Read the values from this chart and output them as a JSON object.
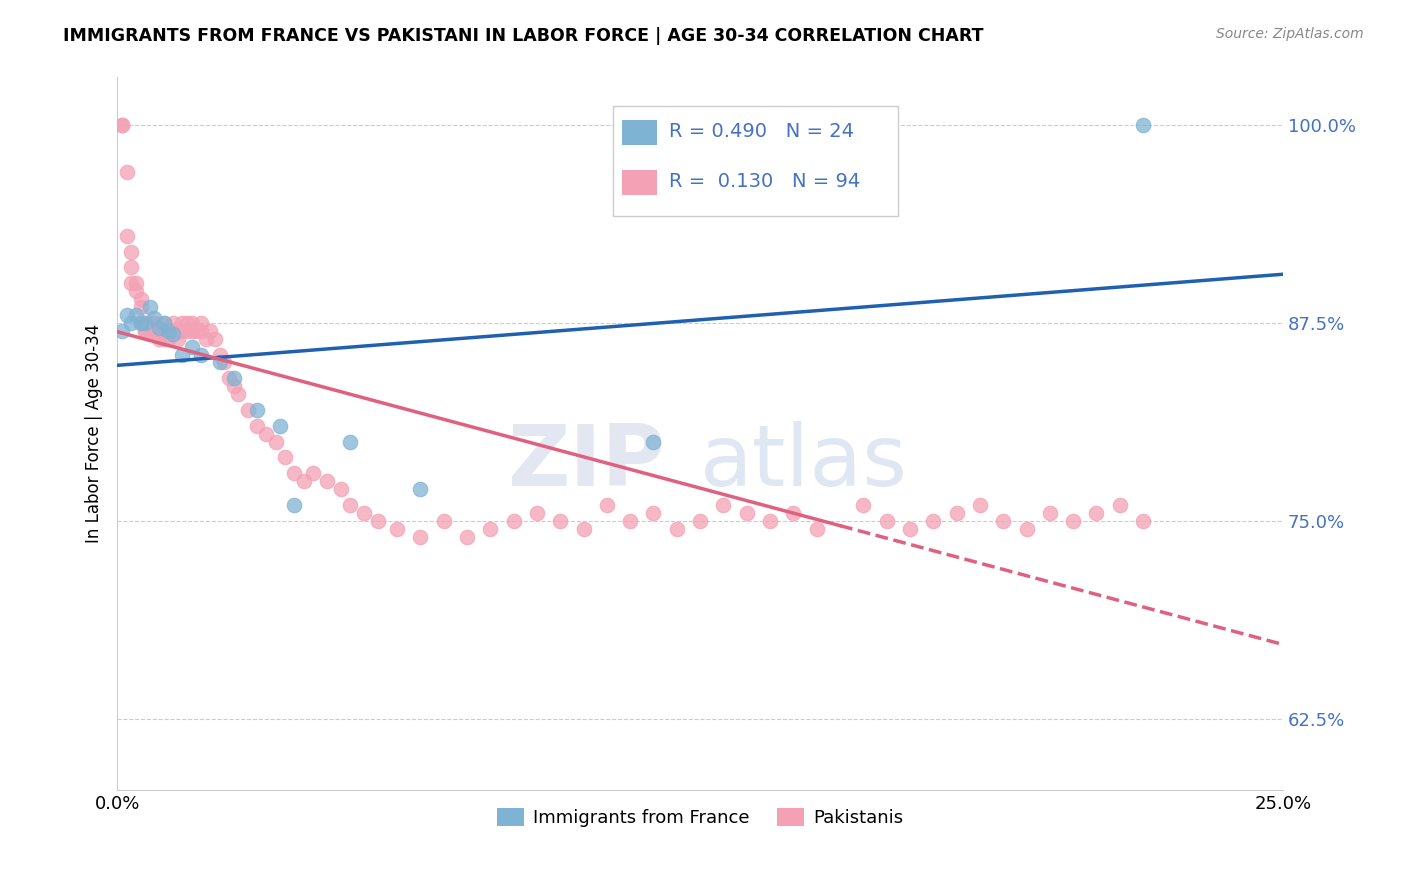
{
  "title": "IMMIGRANTS FROM FRANCE VS PAKISTANI IN LABOR FORCE | AGE 30-34 CORRELATION CHART",
  "source": "Source: ZipAtlas.com",
  "ylabel": "In Labor Force | Age 30-34",
  "xlim": [
    0.0,
    0.25
  ],
  "ylim": [
    0.58,
    1.03
  ],
  "yticks": [
    0.625,
    0.75,
    0.875,
    1.0
  ],
  "ytick_labels": [
    "62.5%",
    "75.0%",
    "87.5%",
    "100.0%"
  ],
  "xticks": [
    0.0,
    0.05,
    0.1,
    0.15,
    0.2,
    0.25
  ],
  "xtick_labels": [
    "0.0%",
    "",
    "",
    "",
    "",
    "25.0%"
  ],
  "blue_color": "#7fb3d3",
  "pink_color": "#f4a0b5",
  "trend_blue_color": "#2060b0",
  "trend_pink_color": "#e06080",
  "watermark_zip": "ZIP",
  "watermark_atlas": "atlas",
  "blue_x": [
    0.001,
    0.002,
    0.003,
    0.004,
    0.005,
    0.006,
    0.007,
    0.008,
    0.009,
    0.01,
    0.011,
    0.012,
    0.014,
    0.016,
    0.018,
    0.022,
    0.025,
    0.03,
    0.035,
    0.038,
    0.05,
    0.065,
    0.115,
    0.22
  ],
  "blue_y": [
    0.87,
    0.88,
    0.875,
    0.88,
    0.875,
    0.875,
    0.885,
    0.878,
    0.872,
    0.875,
    0.87,
    0.868,
    0.855,
    0.86,
    0.855,
    0.85,
    0.84,
    0.82,
    0.81,
    0.76,
    0.8,
    0.77,
    0.8,
    1.0
  ],
  "pink_x": [
    0.001,
    0.001,
    0.002,
    0.002,
    0.003,
    0.003,
    0.003,
    0.004,
    0.004,
    0.005,
    0.005,
    0.005,
    0.006,
    0.006,
    0.006,
    0.007,
    0.007,
    0.007,
    0.008,
    0.008,
    0.008,
    0.009,
    0.009,
    0.01,
    0.01,
    0.01,
    0.011,
    0.011,
    0.012,
    0.012,
    0.013,
    0.013,
    0.014,
    0.014,
    0.015,
    0.015,
    0.016,
    0.016,
    0.017,
    0.018,
    0.018,
    0.019,
    0.02,
    0.021,
    0.022,
    0.023,
    0.024,
    0.025,
    0.026,
    0.028,
    0.03,
    0.032,
    0.034,
    0.036,
    0.038,
    0.04,
    0.042,
    0.045,
    0.048,
    0.05,
    0.053,
    0.056,
    0.06,
    0.065,
    0.07,
    0.075,
    0.08,
    0.085,
    0.09,
    0.095,
    0.1,
    0.105,
    0.11,
    0.115,
    0.12,
    0.125,
    0.13,
    0.135,
    0.14,
    0.145,
    0.15,
    0.16,
    0.165,
    0.17,
    0.175,
    0.18,
    0.185,
    0.19,
    0.195,
    0.2,
    0.205,
    0.21,
    0.215,
    0.22
  ],
  "pink_y": [
    1.0,
    1.0,
    0.97,
    0.93,
    0.92,
    0.91,
    0.9,
    0.9,
    0.895,
    0.89,
    0.885,
    0.875,
    0.875,
    0.87,
    0.87,
    0.875,
    0.87,
    0.875,
    0.875,
    0.87,
    0.87,
    0.87,
    0.865,
    0.875,
    0.87,
    0.865,
    0.87,
    0.865,
    0.875,
    0.87,
    0.87,
    0.865,
    0.875,
    0.87,
    0.875,
    0.87,
    0.87,
    0.875,
    0.87,
    0.87,
    0.875,
    0.865,
    0.87,
    0.865,
    0.855,
    0.85,
    0.84,
    0.835,
    0.83,
    0.82,
    0.81,
    0.805,
    0.8,
    0.79,
    0.78,
    0.775,
    0.78,
    0.775,
    0.77,
    0.76,
    0.755,
    0.75,
    0.745,
    0.74,
    0.75,
    0.74,
    0.745,
    0.75,
    0.755,
    0.75,
    0.745,
    0.76,
    0.75,
    0.755,
    0.745,
    0.75,
    0.76,
    0.755,
    0.75,
    0.755,
    0.745,
    0.76,
    0.75,
    0.745,
    0.75,
    0.755,
    0.76,
    0.75,
    0.745,
    0.755,
    0.75,
    0.755,
    0.76,
    0.75
  ]
}
